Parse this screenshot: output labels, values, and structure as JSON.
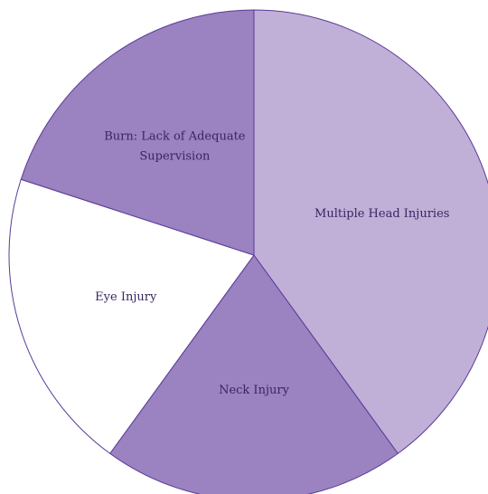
{
  "chart_data": {
    "type": "pie",
    "slices": [
      {
        "label": "Multiple Head Injuries",
        "value": 40,
        "color": "#c0b0d8",
        "label_lines": [
          "Multiple Head Injuries"
        ]
      },
      {
        "label": "Neck Injury",
        "value": 20,
        "color": "#9b82c0",
        "label_lines": [
          "Neck Injury"
        ]
      },
      {
        "label": "Eye Injury",
        "value": 20,
        "color": "#ffffff",
        "label_lines": [
          "Eye Injury"
        ]
      },
      {
        "label": "Burn: Lack of Adequate Supervision",
        "value": 20,
        "color": "#9b82c0",
        "label_lines": [
          "Burn: Lack of Adequate",
          "Supervision"
        ]
      }
    ],
    "start_angle_deg": 0,
    "direction": "clockwise",
    "stroke_color": "#5a3a99",
    "label_color": "#3a2560"
  }
}
